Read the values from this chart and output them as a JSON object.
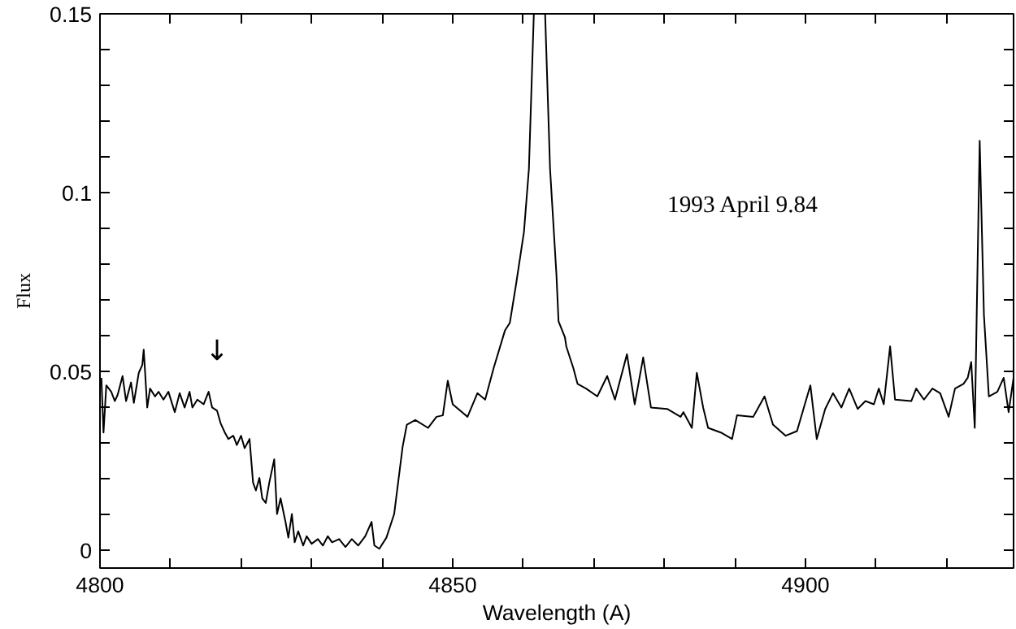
{
  "chart_data": {
    "type": "line",
    "xlabel": "Wavelength (A)",
    "ylabel": "Flux",
    "annotations": [
      "1993 April 9.84",
      "↓"
    ],
    "xlim": [
      4800,
      4929.5
    ],
    "ylim": [
      -0.005,
      0.15
    ],
    "xticks": [
      4800,
      {
        "value": 4810,
        "label": null
      },
      {
        "value": 4820,
        "label": null
      },
      {
        "value": 4830,
        "label": null
      },
      {
        "value": 4840,
        "label": null
      },
      4850,
      {
        "value": 4860,
        "label": null
      },
      {
        "value": 4870,
        "label": null
      },
      {
        "value": 4880,
        "label": null
      },
      {
        "value": 4890,
        "label": null
      },
      4900,
      {
        "value": 4910,
        "label": null
      },
      {
        "value": 4920,
        "label": null
      }
    ],
    "yticks": [
      0,
      {
        "value": 0.01,
        "label": null
      },
      {
        "value": 0.02,
        "label": null
      },
      {
        "value": 0.03,
        "label": null
      },
      {
        "value": 0.04,
        "label": null
      },
      0.05,
      {
        "value": 0.06,
        "label": null
      },
      {
        "value": 0.07,
        "label": null
      },
      {
        "value": 0.08,
        "label": null
      },
      {
        "value": 0.09,
        "label": null
      },
      0.1,
      {
        "value": 0.11,
        "label": null
      },
      {
        "value": 0.12,
        "label": null
      },
      {
        "value": 0.13,
        "label": null
      },
      {
        "value": 0.14,
        "label": null
      },
      0.15
    ],
    "grid": false,
    "line_style": "solid",
    "series": [
      {
        "color": "#000000",
        "x": [
          4800.2,
          4800.5,
          4800.9,
          4801.6,
          4802.1,
          4802.5,
          4803.2,
          4803.7,
          4804.4,
          4804.8,
          4805.5,
          4806.0,
          4806.2,
          4806.7,
          4807.1,
          4807.8,
          4808.3,
          4809.0,
          4809.7,
          4810.6,
          4811.3,
          4812.0,
          4812.7,
          4813.1,
          4813.8,
          4814.7,
          4815.4,
          4815.9,
          4816.6,
          4817.1,
          4817.7,
          4818.2,
          4818.9,
          4819.4,
          4820.0,
          4820.5,
          4821.2,
          4821.7,
          4822.1,
          4822.6,
          4823.0,
          4823.5,
          4824.0,
          4824.7,
          4825.1,
          4825.6,
          4826.3,
          4826.7,
          4827.2,
          4827.6,
          4828.1,
          4828.8,
          4829.3,
          4830.0,
          4830.9,
          4831.6,
          4832.3,
          4832.9,
          4833.9,
          4834.8,
          4835.7,
          4836.6,
          4837.6,
          4838.5,
          4838.9,
          4839.6,
          4840.6,
          4841.7,
          4842.9,
          4843.5,
          4844.7,
          4846.5,
          4847.7,
          4848.6,
          4849.3,
          4850.0,
          4852.1,
          4853.5,
          4854.6,
          4855.8,
          4857.4,
          4858.1,
          4859.0,
          4860.1,
          4860.8,
          4861.5,
          4863.1,
          4863.8,
          4864.7,
          4865.0,
          4865.9,
          4866.1,
          4867.1,
          4867.7,
          4868.9,
          4870.5,
          4871.9,
          4873.0,
          4874.7,
          4875.8,
          4877.0,
          4878.1,
          4880.4,
          4882.3,
          4882.7,
          4883.9,
          4884.6,
          4885.5,
          4886.2,
          4888.0,
          4889.6,
          4890.3,
          4892.6,
          4894.2,
          4895.4,
          4897.2,
          4898.8,
          4900.7,
          4901.6,
          4902.8,
          4903.9,
          4905.1,
          4906.2,
          4907.4,
          4908.5,
          4909.7,
          4910.4,
          4911.1,
          4912.0,
          4912.7,
          4915.0,
          4915.7,
          4916.8,
          4918.0,
          4919.1,
          4920.3,
          4921.2,
          4922.4,
          4923.0,
          4923.5,
          4924.0,
          4924.7,
          4925.3,
          4926.0,
          4927.2,
          4928.1,
          4928.8,
          4929.5
        ],
        "values": [
          0.0482,
          0.0329,
          0.0461,
          0.0443,
          0.0417,
          0.0434,
          0.0487,
          0.0417,
          0.0469,
          0.0412,
          0.0496,
          0.0518,
          0.0561,
          0.0399,
          0.0452,
          0.043,
          0.0443,
          0.0421,
          0.0443,
          0.0386,
          0.0439,
          0.0399,
          0.0443,
          0.0399,
          0.0421,
          0.0408,
          0.0443,
          0.0399,
          0.039,
          0.0355,
          0.0329,
          0.0311,
          0.032,
          0.0294,
          0.032,
          0.0285,
          0.0311,
          0.0189,
          0.0167,
          0.0202,
          0.0145,
          0.0132,
          0.0189,
          0.0254,
          0.0101,
          0.0145,
          0.0079,
          0.0035,
          0.0101,
          0.0022,
          0.0053,
          0.0013,
          0.0039,
          0.0018,
          0.0031,
          0.0013,
          0.0039,
          0.0022,
          0.0031,
          0.0009,
          0.0031,
          0.0013,
          0.0039,
          0.0079,
          0.0013,
          0.0004,
          0.0035,
          0.0101,
          0.0289,
          0.0351,
          0.0364,
          0.0342,
          0.0373,
          0.0377,
          0.0474,
          0.0408,
          0.0373,
          0.0439,
          0.0421,
          0.0509,
          0.0614,
          0.0636,
          0.0746,
          0.089,
          0.1066,
          0.15,
          0.15,
          0.1066,
          0.0772,
          0.064,
          0.0596,
          0.057,
          0.0509,
          0.0465,
          0.0452,
          0.043,
          0.0487,
          0.0421,
          0.0548,
          0.0408,
          0.0539,
          0.0399,
          0.0395,
          0.0373,
          0.0386,
          0.0342,
          0.0496,
          0.0399,
          0.0342,
          0.0329,
          0.0311,
          0.0377,
          0.0373,
          0.043,
          0.0351,
          0.032,
          0.0333,
          0.0461,
          0.0311,
          0.0395,
          0.0439,
          0.0399,
          0.0452,
          0.0395,
          0.0417,
          0.0408,
          0.0452,
          0.0408,
          0.057,
          0.0421,
          0.0417,
          0.0452,
          0.0421,
          0.0452,
          0.0439,
          0.0373,
          0.0452,
          0.0465,
          0.0482,
          0.0526,
          0.0342,
          0.1145,
          0.0658,
          0.043,
          0.0443,
          0.0482,
          0.0386,
          0.0482
        ]
      }
    ]
  }
}
